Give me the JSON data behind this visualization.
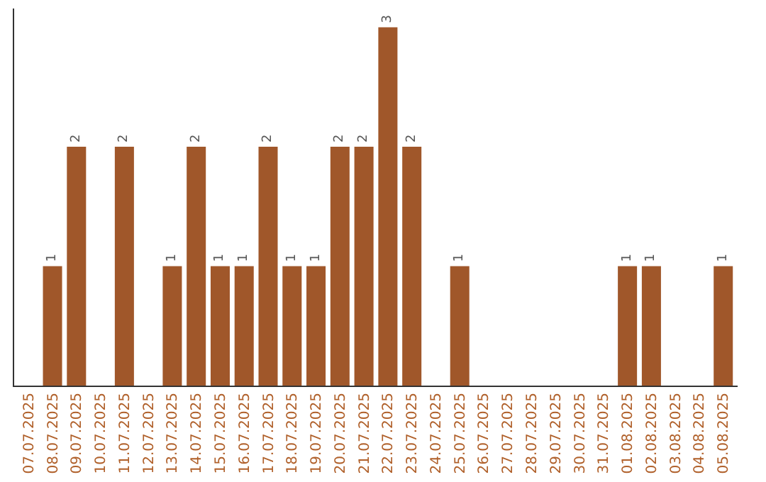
{
  "chart_data": {
    "type": "bar",
    "categories": [
      "07.07.2025",
      "08.07.2025",
      "09.07.2025",
      "10.07.2025",
      "11.07.2025",
      "12.07.2025",
      "13.07.2025",
      "14.07.2025",
      "15.07.2025",
      "16.07.2025",
      "17.07.2025",
      "18.07.2025",
      "19.07.2025",
      "20.07.2025",
      "21.07.2025",
      "22.07.2025",
      "23.07.2025",
      "24.07.2025",
      "25.07.2025",
      "26.07.2025",
      "27.07.2025",
      "28.07.2025",
      "29.07.2025",
      "30.07.2025",
      "31.07.2025",
      "01.08.2025",
      "02.08.2025",
      "03.08.2025",
      "04.08.2025",
      "05.08.2025"
    ],
    "values": [
      0,
      1,
      2,
      0,
      2,
      0,
      1,
      2,
      1,
      1,
      2,
      1,
      1,
      2,
      2,
      3,
      2,
      0,
      1,
      0,
      0,
      0,
      0,
      0,
      0,
      1,
      1,
      0,
      0,
      1
    ],
    "value_labels": [
      null,
      "1",
      "2",
      null,
      "2",
      null,
      "1",
      "2",
      "1",
      "1",
      "2",
      "1",
      "1",
      "2",
      "2",
      "3",
      "2",
      null,
      "1",
      null,
      null,
      null,
      null,
      null,
      null,
      "1",
      "1",
      null,
      null,
      "1"
    ],
    "color": "#a0572a",
    "tick_labels": "x",
    "legend": false
  }
}
